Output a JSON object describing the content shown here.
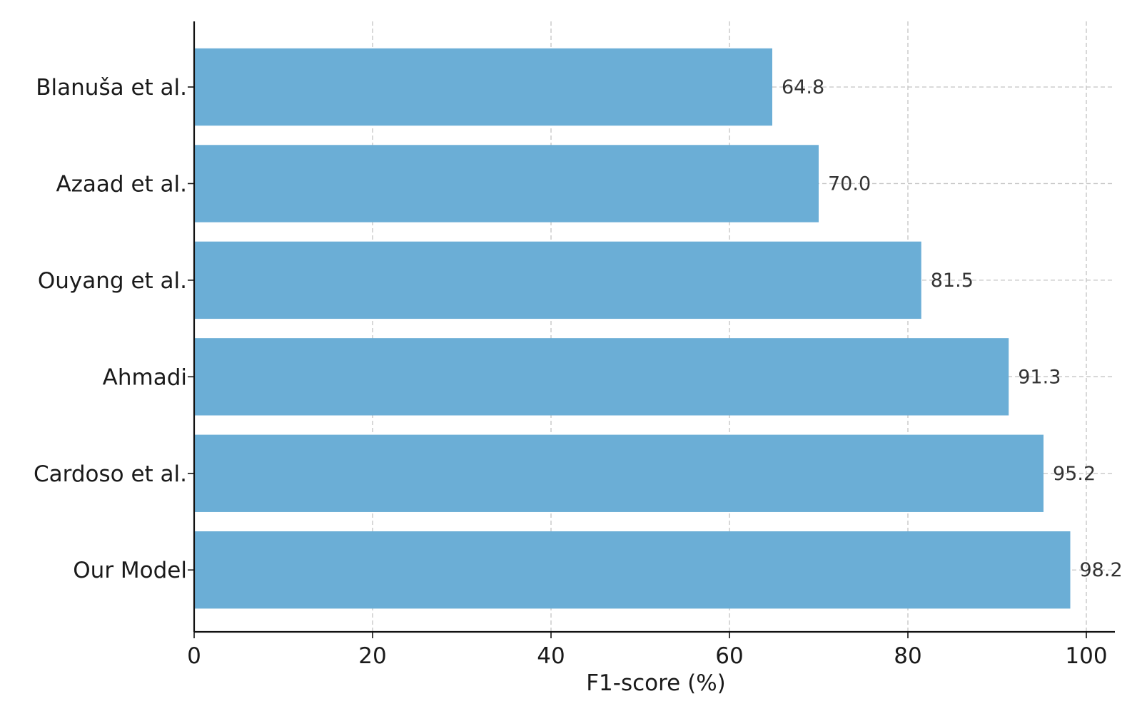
{
  "chart_data": {
    "type": "bar",
    "orientation": "horizontal",
    "categories": [
      "Blanuša et al.",
      "Azaad et al.",
      "Ouyang et al.",
      "Ahmadi",
      "Cardoso et al.",
      "Our Model"
    ],
    "values": [
      64.8,
      70.0,
      81.5,
      91.3,
      95.2,
      98.2
    ],
    "value_labels": [
      "64.8",
      "70.0",
      "81.5",
      "91.3",
      "95.2",
      "98.2"
    ],
    "title": "",
    "xlabel": "F1-score (%)",
    "ylabel": "",
    "xlim": [
      0,
      103.2
    ],
    "xticks": [
      0,
      20,
      40,
      60,
      80,
      100
    ],
    "grid": true,
    "bar_color": "#6baed6"
  }
}
